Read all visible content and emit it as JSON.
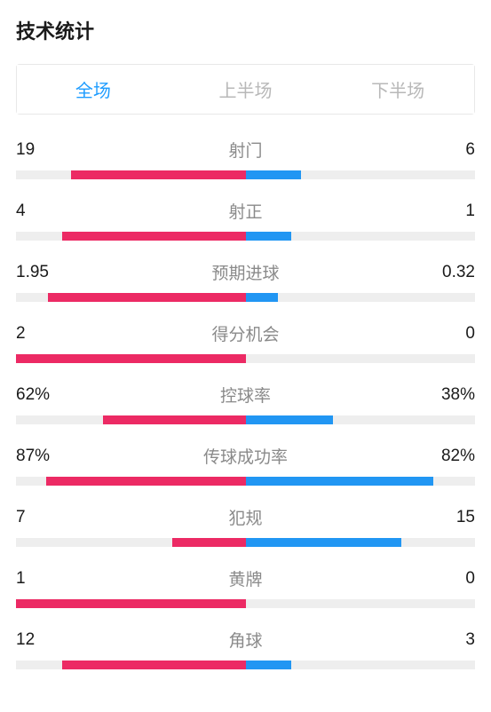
{
  "title": "技术统计",
  "tabs": {
    "full": "全场",
    "first_half": "上半场",
    "second_half": "下半场",
    "active": 0
  },
  "colors": {
    "left_bar": "#ec2a64",
    "right_bar": "#2196f3",
    "bar_bg": "#eeeeee",
    "active_tab": "#1e9cff",
    "inactive_tab": "#b8b8b8",
    "label": "#8a8a8a",
    "value": "#1a1a1a"
  },
  "stats": [
    {
      "label": "射门",
      "left_value": "19",
      "right_value": "6",
      "left_pct": 76,
      "right_pct": 24
    },
    {
      "label": "射正",
      "left_value": "4",
      "right_value": "1",
      "left_pct": 80,
      "right_pct": 20
    },
    {
      "label": "预期进球",
      "left_value": "1.95",
      "right_value": "0.32",
      "left_pct": 86,
      "right_pct": 14
    },
    {
      "label": "得分机会",
      "left_value": "2",
      "right_value": "0",
      "left_pct": 100,
      "right_pct": 0
    },
    {
      "label": "控球率",
      "left_value": "62%",
      "right_value": "38%",
      "left_pct": 62,
      "right_pct": 38
    },
    {
      "label": "传球成功率",
      "left_value": "87%",
      "right_value": "82%",
      "left_pct": 87,
      "right_pct": 82
    },
    {
      "label": "犯规",
      "left_value": "7",
      "right_value": "15",
      "left_pct": 32,
      "right_pct": 68
    },
    {
      "label": "黄牌",
      "left_value": "1",
      "right_value": "0",
      "left_pct": 100,
      "right_pct": 0
    },
    {
      "label": "角球",
      "left_value": "12",
      "right_value": "3",
      "left_pct": 80,
      "right_pct": 20
    }
  ]
}
